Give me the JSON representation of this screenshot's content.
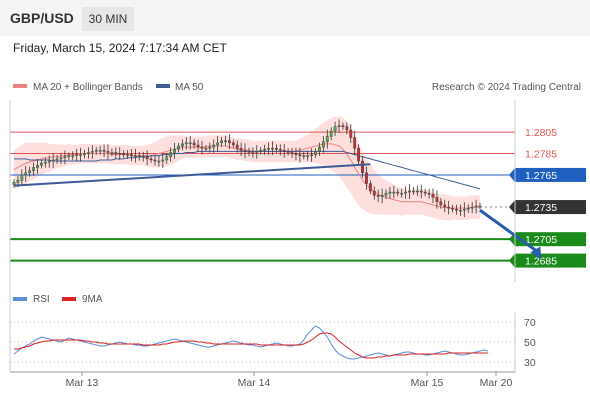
{
  "header": {
    "symbol": "GBP/USD",
    "timeframe": "30 MIN",
    "datetime": "Friday, March 15, 2024 7:17:34 AM CET"
  },
  "legend": {
    "bollinger_label": "MA 20 + Bollinger Bands",
    "ma50_label": "MA 50",
    "credit": "Research © 2024 Trading Central",
    "rsi_label": "RSI",
    "rsi_ma_label": "9MA"
  },
  "colors": {
    "band": "#fde0de",
    "ma20": "#f08080",
    "ma50": "#3d5a99",
    "resistance": "#e05555",
    "pivot": "#1f5fbf",
    "support": "#1a8a1a",
    "last": "#333333",
    "rsi": "#5b8dd9",
    "rsi_ma": "#dd2222",
    "trend": "#3d5a99",
    "arrow": "#2a5da8"
  },
  "chart_data": [
    {
      "type": "candlestick",
      "title": "GBP/USD",
      "x_tick_labels": [
        "Mar 13",
        "Mar 14",
        "Mar 15",
        "Mar 20"
      ],
      "ylim": [
        1.2665,
        1.2835
      ],
      "levels": [
        {
          "value": 1.2805,
          "label": "1.2805",
          "kind": "resistance"
        },
        {
          "value": 1.2785,
          "label": "1.2785",
          "kind": "resistance"
        },
        {
          "value": 1.2765,
          "label": "1.2765",
          "kind": "pivot"
        },
        {
          "value": 1.2735,
          "label": "1.2735",
          "kind": "last"
        },
        {
          "value": 1.2705,
          "label": "1.2705",
          "kind": "support"
        },
        {
          "value": 1.2685,
          "label": "1.2685",
          "kind": "support"
        }
      ],
      "close": [
        1.2758,
        1.276,
        1.2765,
        1.2767,
        1.2769,
        1.2772,
        1.2774,
        1.2776,
        1.2777,
        1.2778,
        1.2779,
        1.278,
        1.2781,
        1.2782,
        1.2783,
        1.2783,
        1.2784,
        1.2784,
        1.2785,
        1.2786,
        1.2787,
        1.2788,
        1.2788,
        1.2787,
        1.2786,
        1.2786,
        1.2785,
        1.2785,
        1.2784,
        1.2784,
        1.2783,
        1.2783,
        1.2782,
        1.2782,
        1.278,
        1.2779,
        1.2778,
        1.2778,
        1.2779,
        1.2782,
        1.2786,
        1.2789,
        1.2792,
        1.2794,
        1.2795,
        1.2795,
        1.2793,
        1.2791,
        1.279,
        1.279,
        1.2791,
        1.2793,
        1.2795,
        1.2797,
        1.2797,
        1.2795,
        1.2793,
        1.279,
        1.2788,
        1.2787,
        1.2786,
        1.2786,
        1.2787,
        1.2788,
        1.2789,
        1.279,
        1.279,
        1.2789,
        1.2788,
        1.2787,
        1.2786,
        1.2785,
        1.2784,
        1.2783,
        1.2783,
        1.2783,
        1.2784,
        1.2787,
        1.2791,
        1.2796,
        1.2801,
        1.2806,
        1.281,
        1.2811,
        1.281,
        1.2807,
        1.28,
        1.279,
        1.2778,
        1.2767,
        1.2757,
        1.275,
        1.2746,
        1.2745,
        1.2746,
        1.2748,
        1.2749,
        1.2749,
        1.2748,
        1.2748,
        1.2749,
        1.275,
        1.275,
        1.275,
        1.2749,
        1.2748,
        1.2747,
        1.2744,
        1.274,
        1.2737,
        1.2735,
        1.2734,
        1.2733,
        1.2732,
        1.2732,
        1.2733,
        1.2734,
        1.2735,
        1.2736,
        1.2736
      ],
      "ma20": [
        1.277,
        1.2772,
        1.2774,
        1.2776,
        1.2777,
        1.2778,
        1.2779,
        1.278,
        1.2781,
        1.2781,
        1.2782,
        1.2782,
        1.2783,
        1.2783,
        1.2784,
        1.2784,
        1.2784,
        1.2785,
        1.2785,
        1.2785,
        1.2785,
        1.2785,
        1.2785,
        1.2785,
        1.2785,
        1.2784,
        1.2784,
        1.2784,
        1.2784,
        1.2784,
        1.2783,
        1.2783,
        1.2783,
        1.2783,
        1.2783,
        1.2783,
        1.2784,
        1.2785,
        1.2786,
        1.2787,
        1.2788,
        1.2789,
        1.279,
        1.2791,
        1.2791,
        1.2791,
        1.2791,
        1.2791,
        1.2791,
        1.2791,
        1.2792,
        1.2792,
        1.2792,
        1.2792,
        1.2792,
        1.2791,
        1.279,
        1.2789,
        1.2789,
        1.2788,
        1.2788,
        1.2787,
        1.2787,
        1.2787,
        1.2787,
        1.2787,
        1.2787,
        1.2787,
        1.2787,
        1.2787,
        1.2787,
        1.2787,
        1.2787,
        1.2788,
        1.2789,
        1.279,
        1.2791,
        1.2792,
        1.2793,
        1.2794,
        1.2794,
        1.2794,
        1.2793,
        1.2792,
        1.2789,
        1.2784,
        1.2779,
        1.2772,
        1.2766,
        1.276,
        1.2756,
        1.2752,
        1.2749,
        1.2747,
        1.2745,
        1.2744,
        1.2743,
        1.2742,
        1.2741,
        1.274,
        1.274,
        1.274,
        1.274,
        1.274,
        1.274,
        1.2739,
        1.2738,
        1.2737,
        1.2736,
        1.2735,
        1.2735,
        1.2734,
        1.2734,
        1.2734,
        1.2734,
        1.2734,
        1.2734,
        1.2735,
        1.2735,
        1.2735
      ],
      "band_width": [
        0.0018,
        0.0019,
        0.0019,
        0.0019,
        0.0018,
        0.0017,
        0.0016,
        0.0015,
        0.0014,
        0.0013,
        0.0012,
        0.0011,
        0.0011,
        0.001,
        0.001,
        0.0009,
        0.0009,
        0.0009,
        0.0009,
        0.0009,
        0.0009,
        0.0009,
        0.0009,
        0.0009,
        0.0009,
        0.0009,
        0.0009,
        0.0009,
        0.0009,
        0.0009,
        0.0009,
        0.0009,
        0.0009,
        0.0009,
        0.001,
        0.0011,
        0.0012,
        0.0013,
        0.0014,
        0.0014,
        0.0014,
        0.0013,
        0.0012,
        0.0011,
        0.001,
        0.001,
        0.001,
        0.001,
        0.001,
        0.001,
        0.001,
        0.001,
        0.001,
        0.001,
        0.001,
        0.001,
        0.001,
        0.001,
        0.001,
        0.001,
        0.001,
        0.001,
        0.001,
        0.001,
        0.001,
        0.001,
        0.001,
        0.001,
        0.001,
        0.001,
        0.001,
        0.001,
        0.001,
        0.0011,
        0.0012,
        0.0013,
        0.0014,
        0.0016,
        0.0018,
        0.002,
        0.0022,
        0.0024,
        0.0026,
        0.0028,
        0.003,
        0.0031,
        0.0031,
        0.003,
        0.0029,
        0.0027,
        0.0025,
        0.0023,
        0.0021,
        0.0019,
        0.0017,
        0.0016,
        0.0015,
        0.0014,
        0.0013,
        0.0013,
        0.0012,
        0.0012,
        0.0012,
        0.0012,
        0.0012,
        0.0012,
        0.0012,
        0.0012,
        0.0012,
        0.0012,
        0.0012,
        0.0012,
        0.0011,
        0.0011,
        0.0011,
        0.0011,
        0.0011,
        0.0011,
        0.0011,
        0.0011
      ],
      "ma50": [
        1.278,
        1.278,
        1.278,
        1.278,
        1.2779,
        1.2779,
        1.2779,
        1.2779,
        1.2779,
        1.2779,
        1.2778,
        1.2778,
        1.2778,
        1.2778,
        1.2778,
        1.2778,
        1.2778,
        1.2778,
        1.2778,
        1.2778,
        1.2778,
        1.2778,
        1.2779,
        1.2779,
        1.2779,
        1.2779,
        1.278,
        1.278,
        1.278,
        1.2781,
        1.2781,
        1.2781,
        1.2782,
        1.2782,
        1.2782,
        1.2783,
        1.2783,
        1.2783,
        1.2784,
        1.2784,
        1.2784,
        1.2785,
        1.2785,
        1.2785,
        1.2786,
        1.2786,
        1.2786,
        1.2787,
        1.2787,
        1.2787,
        1.2787,
        1.2787,
        1.2787,
        1.2787,
        1.2787,
        1.2787,
        1.2787,
        1.2787,
        1.2787,
        1.2787,
        1.2787,
        1.2787,
        1.2787,
        1.2787,
        1.2787,
        1.2787,
        1.2787,
        1.2787,
        1.2787,
        1.2787,
        1.2787,
        1.2787,
        1.2787,
        1.2787,
        1.2787,
        1.2787,
        1.2787,
        1.2787,
        1.2787,
        1.2787,
        1.2787,
        1.2787,
        1.2787,
        1.2787,
        1.2787,
        1.2786,
        1.2785,
        1.2784,
        1.2783,
        1.2782,
        1.2781,
        1.278,
        1.2779,
        1.2778,
        1.2777,
        1.2776,
        1.2775,
        1.2774,
        1.2773,
        1.2772,
        1.2771,
        1.277,
        1.2769,
        1.2768,
        1.2767,
        1.2766,
        1.2765,
        1.2764,
        1.2763,
        1.2762,
        1.2761,
        1.276,
        1.2759,
        1.2758,
        1.2757,
        1.2756,
        1.2755,
        1.2754,
        1.2753,
        1.2752
      ],
      "trendline": {
        "from": [
          0,
          1.2755
        ],
        "to": [
          91,
          1.2775
        ]
      },
      "projection": {
        "from": [
          119,
          1.2732
        ],
        "to": [
          127,
          1.2686
        ]
      }
    },
    {
      "type": "line",
      "title": "RSI",
      "ylim": [
        20,
        80
      ],
      "y_ticks": [
        70,
        50,
        30
      ],
      "series": [
        {
          "name": "RSI",
          "values": [
            38,
            41,
            44,
            46,
            48,
            51,
            53,
            55,
            54,
            53,
            52,
            51,
            50,
            52,
            54,
            53,
            52,
            51,
            50,
            49,
            48,
            47,
            46,
            46,
            47,
            48,
            49,
            50,
            49,
            48,
            48,
            47,
            47,
            46,
            46,
            47,
            48,
            49,
            50,
            51,
            52,
            53,
            52,
            51,
            50,
            49,
            48,
            47,
            46,
            45,
            45,
            46,
            47,
            48,
            49,
            50,
            51,
            50,
            49,
            48,
            47,
            47,
            46,
            45,
            46,
            47,
            48,
            49,
            48,
            47,
            46,
            46,
            47,
            48,
            52,
            58,
            62,
            66,
            64,
            60,
            55,
            48,
            42,
            38,
            36,
            34,
            33,
            33,
            34,
            35,
            36,
            37,
            38,
            39,
            38,
            37,
            36,
            37,
            38,
            39,
            40,
            40,
            39,
            38,
            38,
            37,
            37,
            38,
            39,
            40,
            41,
            40,
            39,
            38,
            37,
            37,
            38,
            39,
            40,
            41,
            42,
            41
          ]
        },
        {
          "name": "9MA",
          "values": [
            43,
            43,
            44,
            45,
            46,
            48,
            49,
            50,
            51,
            51,
            52,
            52,
            52,
            52,
            52,
            52,
            52,
            52,
            51,
            51,
            50,
            50,
            49,
            49,
            48,
            48,
            48,
            48,
            48,
            48,
            48,
            48,
            48,
            47,
            47,
            47,
            47,
            47,
            48,
            48,
            49,
            50,
            50,
            51,
            51,
            51,
            51,
            50,
            50,
            49,
            49,
            48,
            48,
            48,
            48,
            48,
            48,
            48,
            48,
            48,
            48,
            48,
            48,
            47,
            47,
            47,
            47,
            47,
            47,
            47,
            47,
            47,
            47,
            47,
            48,
            50,
            52,
            55,
            58,
            59,
            59,
            58,
            55,
            51,
            48,
            45,
            42,
            39,
            37,
            35,
            34,
            34,
            34,
            35,
            35,
            36,
            36,
            37,
            37,
            37,
            37,
            38,
            38,
            38,
            38,
            38,
            38,
            38,
            38,
            38,
            38,
            39,
            39,
            39,
            39,
            39,
            39,
            39,
            39,
            39,
            39,
            39
          ]
        }
      ]
    }
  ]
}
